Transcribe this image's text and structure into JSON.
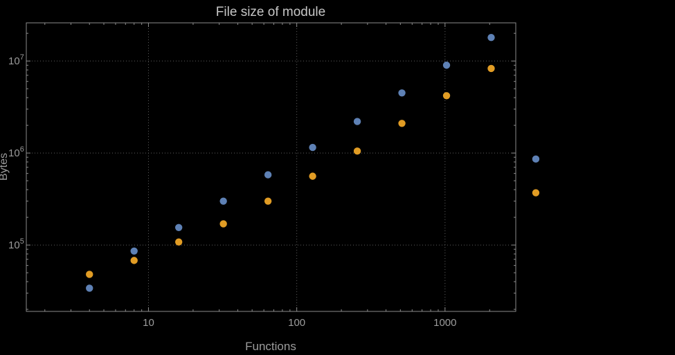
{
  "chart_data": {
    "type": "scatter",
    "title": "File size of module",
    "xlabel": "Functions",
    "ylabel": "Bytes",
    "x_scale": "log",
    "y_scale": "log",
    "x_range": [
      1.5,
      3000
    ],
    "y_range": [
      19000,
      26000000
    ],
    "grid": "dotted-at-decades",
    "legend": "none",
    "x": [
      4,
      8,
      16,
      32,
      64,
      128,
      256,
      512,
      1024,
      2048,
      4096
    ],
    "x_ticks": [
      {
        "value": 10,
        "label": "10"
      },
      {
        "value": 100,
        "label": "100"
      },
      {
        "value": 1000,
        "label": "1000"
      }
    ],
    "y_ticks": [
      {
        "value": 100000,
        "base": "10",
        "exp": "5"
      },
      {
        "value": 1000000,
        "base": "10",
        "exp": "6"
      },
      {
        "value": 10000000,
        "base": "10",
        "exp": "7"
      }
    ],
    "series": [
      {
        "name": "blue-series",
        "color": "#5e81b5",
        "y": [
          34000,
          86000,
          155000,
          300000,
          580000,
          1150000,
          2200000,
          4500000,
          9000000,
          18000000,
          860000
        ]
      },
      {
        "name": "orange-series",
        "color": "#e19c24",
        "y": [
          48000,
          68000,
          108000,
          170000,
          300000,
          560000,
          1050000,
          2100000,
          4200000,
          8300000,
          370000
        ]
      }
    ]
  },
  "style": {
    "background": "#000000",
    "frame_color": "#8d8d8d",
    "grid_color": "#5f5f5f",
    "tick_label_color": "#9c9c9c",
    "axis_label_color": "#9c9c9c",
    "title_color": "#c6c6c6"
  }
}
